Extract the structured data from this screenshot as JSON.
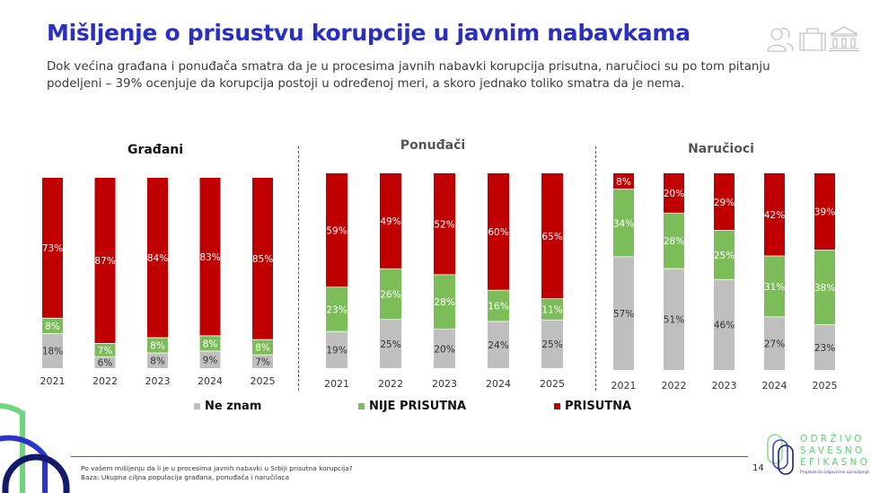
{
  "header": {
    "title": "Mišljenje o prisustvu korupcije u javnim nabavkama",
    "subtitle": "Dok većina građana i ponuđača smatra da je u procesima javnih nabavki korupcija prisutna, naručioci su po tom pitanju podeljeni – 39% ocenjuje da korupcija postoji u određenoj meri, a skoro jednako toliko smatra da je nema.",
    "icons": [
      "people-icon",
      "briefcase-icon",
      "institution-icon"
    ]
  },
  "colors": {
    "title": "#2b2fbf",
    "ne_znam": "#bfbfbf",
    "nije_prisutna": "#7cbd5a",
    "prisutna": "#c00000"
  },
  "chart_data": [
    {
      "type": "bar",
      "stacked": true,
      "percent": true,
      "title": "Građani",
      "categories": [
        "2021",
        "2022",
        "2023",
        "2024",
        "2025"
      ],
      "series": [
        {
          "name": "Ne znam",
          "values": [
            18,
            6,
            8,
            9,
            7
          ]
        },
        {
          "name": "NIJE PRISUTNA",
          "values": [
            8,
            7,
            8,
            8,
            8
          ]
        },
        {
          "name": "PRISUTNA",
          "values": [
            73,
            87,
            84,
            83,
            85
          ]
        }
      ],
      "ylim": [
        0,
        100
      ],
      "grid": false
    },
    {
      "type": "bar",
      "stacked": true,
      "percent": true,
      "title": "Ponuđači",
      "categories": [
        "2021",
        "2022",
        "2023",
        "2024",
        "2025"
      ],
      "series": [
        {
          "name": "Ne znam",
          "values": [
            19,
            25,
            20,
            24,
            25
          ]
        },
        {
          "name": "NIJE PRISUTNA",
          "values": [
            23,
            26,
            28,
            16,
            11
          ]
        },
        {
          "name": "PRISUTNA",
          "values": [
            59,
            49,
            52,
            60,
            65
          ]
        }
      ],
      "ylim": [
        0,
        100
      ],
      "grid": false
    },
    {
      "type": "bar",
      "stacked": true,
      "percent": true,
      "title": "Naručioci",
      "categories": [
        "2021",
        "2022",
        "2023",
        "2024",
        "2025"
      ],
      "series": [
        {
          "name": "Ne znam",
          "values": [
            57,
            51,
            46,
            27,
            23
          ]
        },
        {
          "name": "NIJE PRISUTNA",
          "values": [
            34,
            28,
            25,
            31,
            38
          ]
        },
        {
          "name": "PRISUTNA",
          "values": [
            8,
            20,
            29,
            42,
            39
          ]
        }
      ],
      "ylim": [
        0,
        100
      ],
      "grid": false
    }
  ],
  "legend": {
    "placement": "bottom",
    "items": [
      {
        "label": "Ne znam",
        "color": "#bfbfbf"
      },
      {
        "label": "NIJE PRISUTNA",
        "color": "#7cbd5a"
      },
      {
        "label": "PRISUTNA",
        "color": "#c00000"
      }
    ]
  },
  "footer": {
    "question": "Po vašem mišljenju da li je u procesima javnih nabavki u Srbiji prisutna korupcija?",
    "base": "Baza: Ukupna ciljna populacija građana, ponuđača i naručilaca",
    "page_number": "14",
    "brand": {
      "line1": "ODRŽIVO",
      "line2": "SAVESNO",
      "line3": "EFIKASNO",
      "tagline": "Projekat za odgovorno upravljanje"
    }
  }
}
